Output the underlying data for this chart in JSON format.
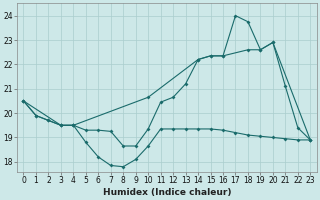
{
  "xlabel": "Humidex (Indice chaleur)",
  "xlim": [
    -0.5,
    23.5
  ],
  "ylim": [
    17.6,
    24.5
  ],
  "yticks": [
    18,
    19,
    20,
    21,
    22,
    23,
    24
  ],
  "xticks": [
    0,
    1,
    2,
    3,
    4,
    5,
    6,
    7,
    8,
    9,
    10,
    11,
    12,
    13,
    14,
    15,
    16,
    17,
    18,
    19,
    20,
    21,
    22,
    23
  ],
  "bg_color": "#cde8e8",
  "grid_color": "#aacece",
  "line_color": "#1a6b6b",
  "series_bottom": {
    "x": [
      0,
      1,
      2,
      3,
      4,
      5,
      6,
      7,
      8,
      9,
      10,
      11,
      12,
      13,
      14,
      15,
      16,
      17,
      18,
      19,
      20,
      21,
      22,
      23
    ],
    "y": [
      20.5,
      19.9,
      19.7,
      19.5,
      19.5,
      18.8,
      18.2,
      17.85,
      17.8,
      18.1,
      18.65,
      19.35,
      19.35,
      19.35,
      19.35,
      19.35,
      19.3,
      19.2,
      19.1,
      19.05,
      19.0,
      18.95,
      18.9,
      18.9
    ]
  },
  "series_peak": {
    "x": [
      0,
      1,
      2,
      3,
      4,
      5,
      6,
      7,
      8,
      9,
      10,
      11,
      12,
      13,
      14,
      15,
      16,
      17,
      18,
      19,
      20,
      21,
      22,
      23
    ],
    "y": [
      20.5,
      19.9,
      19.7,
      19.5,
      19.5,
      19.3,
      19.3,
      19.25,
      18.65,
      18.65,
      19.35,
      20.45,
      20.65,
      21.2,
      22.2,
      22.35,
      22.35,
      24.0,
      23.75,
      22.6,
      22.9,
      21.1,
      19.4,
      18.9
    ]
  },
  "series_diag": {
    "x": [
      0,
      3,
      4,
      10,
      14,
      15,
      16,
      18,
      19,
      20,
      23
    ],
    "y": [
      20.5,
      19.5,
      19.5,
      20.65,
      22.2,
      22.35,
      22.35,
      22.6,
      22.6,
      22.9,
      18.9
    ]
  }
}
